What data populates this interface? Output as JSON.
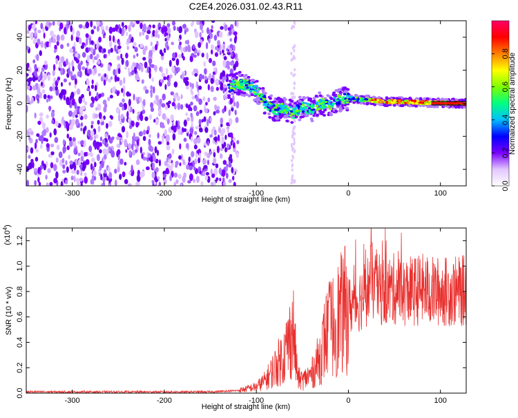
{
  "title": "C2E4.2026.031.02.43.R11",
  "chart_data": [
    {
      "type": "heatmap",
      "xlabel": "Height of straight line (km)",
      "ylabel": "Frequency (Hz)",
      "xlim": [
        -350,
        128
      ],
      "ylim": [
        -50,
        50
      ],
      "xticks": [
        -300,
        -200,
        -100,
        0,
        100
      ],
      "xtick_labels": [
        "-300",
        "-200",
        "-100",
        "0",
        "100"
      ],
      "yticks": [
        -40,
        -20,
        0,
        20,
        40
      ],
      "ytick_labels": [
        "-40",
        "-20",
        "0",
        "20",
        "40"
      ],
      "noise_region_x": [
        -350,
        -120
      ],
      "noise_column_x": -60,
      "signal_track": {
        "x": [
          -130,
          -120,
          -110,
          -100,
          -90,
          -80,
          -70,
          -60,
          -50,
          -40,
          -30,
          -20,
          -10,
          0,
          20,
          40,
          60,
          80,
          100,
          128
        ],
        "y": [
          10,
          12,
          11,
          8,
          0,
          -4,
          -3,
          -6,
          -2,
          -4,
          0,
          -1,
          2,
          3,
          2,
          1,
          1,
          0.5,
          0.2,
          0
        ]
      },
      "colorbar": {
        "label": "Normalized spectral amplitude",
        "range": [
          0,
          1
        ],
        "ticks": [
          0,
          0.2,
          0.4,
          0.6,
          0.8
        ],
        "tick_labels": [
          "0.0",
          "0.2",
          "0.4",
          "0.6",
          "0.8"
        ],
        "colors": [
          "#ffffff",
          "#e2c6ff",
          "#7a00ff",
          "#0000ff",
          "#00bfff",
          "#00ff80",
          "#80ff00",
          "#ffff00",
          "#ff8000",
          "#ff0000",
          "#ff0066"
        ]
      }
    },
    {
      "type": "line",
      "xlabel": "Height of straight line (km)",
      "ylabel": "SNR (10 * v/v)",
      "multiplier_label": "(x10",
      "multiplier_exp": "4",
      "xlim": [
        -350,
        128
      ],
      "ylim": [
        0,
        1.3
      ],
      "xticks": [
        -300,
        -200,
        -100,
        0,
        100
      ],
      "xtick_labels": [
        "-300",
        "-200",
        "-100",
        "0",
        "100"
      ],
      "yticks": [
        0,
        0.2,
        0.4,
        0.6,
        0.8,
        1.0,
        1.2
      ],
      "ytick_labels": [
        "0.0",
        "0.2",
        "0.4",
        "0.6",
        "0.8",
        "1.0",
        "1.2"
      ],
      "series": [
        {
          "name": "SNR",
          "color": "#e8302e",
          "x": [
            -350,
            -300,
            -250,
            -200,
            -150,
            -120,
            -100,
            -90,
            -80,
            -70,
            -65,
            -60,
            -55,
            -50,
            -40,
            -30,
            -25,
            -20,
            -10,
            0,
            10,
            20,
            25,
            30,
            40,
            50,
            60,
            70,
            80,
            90,
            100,
            110,
            120,
            128
          ],
          "y": [
            0.01,
            0.01,
            0.01,
            0.01,
            0.01,
            0.02,
            0.05,
            0.1,
            0.2,
            0.3,
            0.4,
            0.5,
            0.12,
            0.1,
            0.15,
            0.3,
            0.45,
            0.5,
            0.6,
            0.68,
            0.72,
            0.8,
            0.9,
            0.82,
            0.8,
            0.82,
            0.8,
            0.8,
            0.82,
            0.8,
            0.8,
            0.8,
            0.8,
            0.81
          ]
        }
      ]
    }
  ]
}
